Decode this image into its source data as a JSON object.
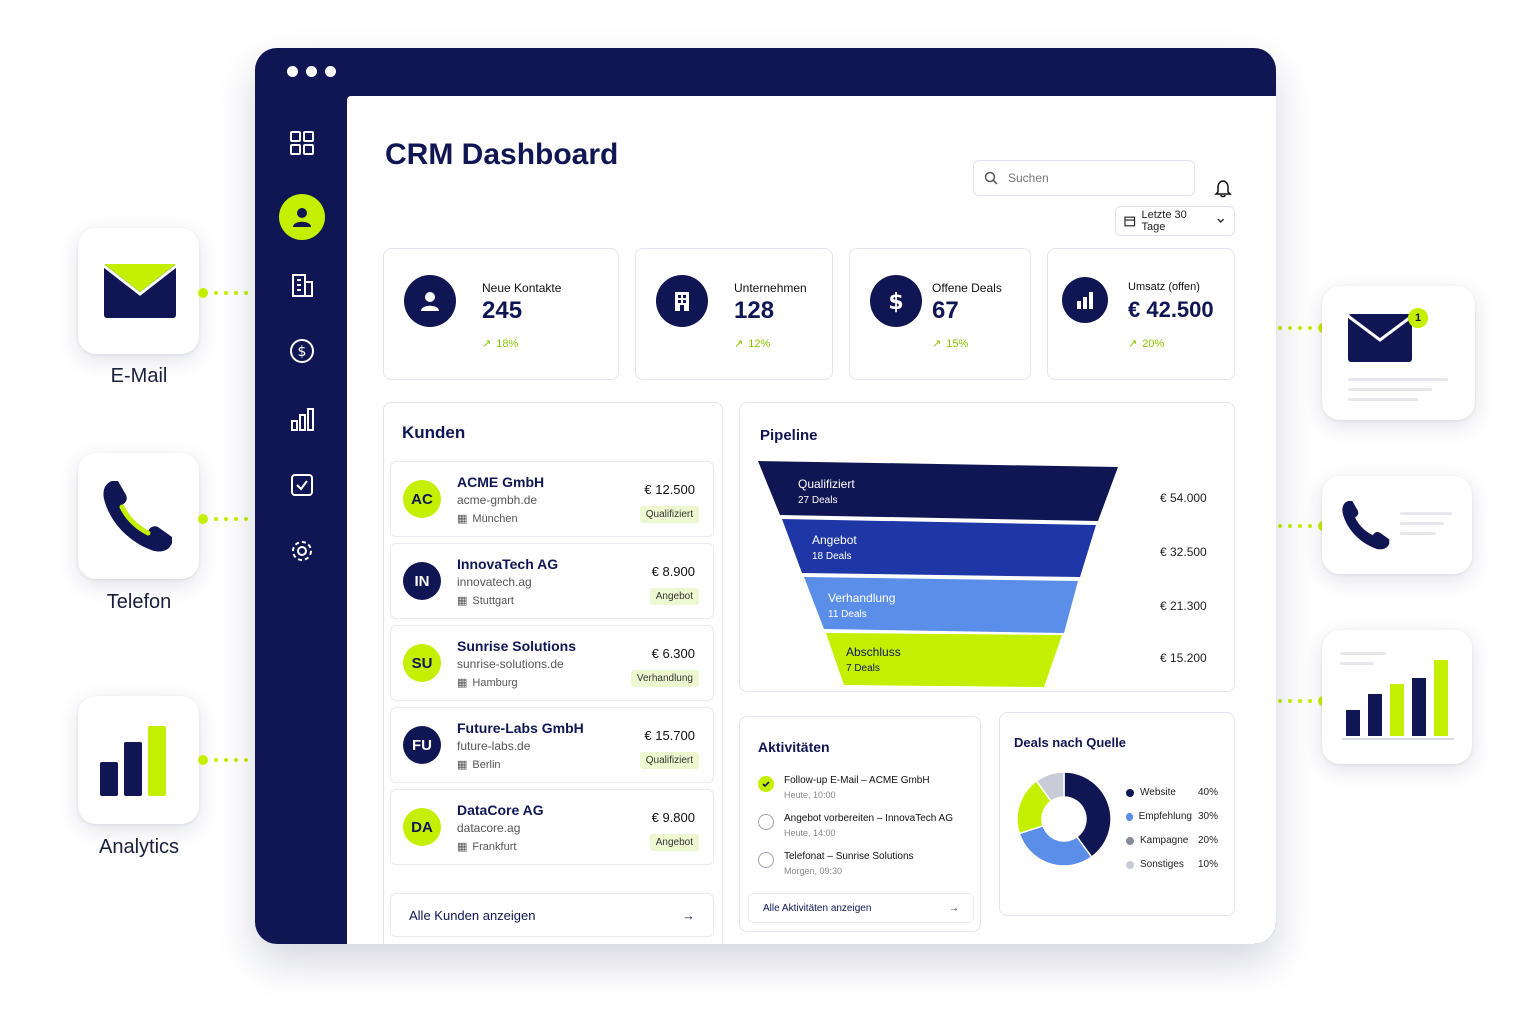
{
  "side_widgets": {
    "email_label": "E-Mail",
    "phone_label": "Telefon",
    "analytics_label": "Analytics",
    "notification_count": "1"
  },
  "header": {
    "title": "CRM Dashboard",
    "search_placeholder": "Suchen",
    "date_range": "Letzte 30 Tage"
  },
  "kpis": [
    {
      "label": "Neue Kontakte",
      "value": "245",
      "trend": "18%"
    },
    {
      "label": "Unternehmen",
      "value": "128",
      "trend": "12%"
    },
    {
      "label": "Offene Deals",
      "value": "67",
      "trend": "15%"
    },
    {
      "label": "Umsatz (offen)",
      "value": "€ 42.500",
      "trend": "20%"
    }
  ],
  "customers": {
    "title": "Kunden",
    "items": [
      {
        "initials": "AC",
        "name": "ACME GmbH",
        "domain": "acme-gmbh.de",
        "city": "München",
        "amount": "€ 12.500",
        "stage": "Qualifiziert"
      },
      {
        "initials": "IN",
        "name": "InnovaTech AG",
        "domain": "innovatech.ag",
        "city": "Stuttgart",
        "amount": "€ 8.900",
        "stage": "Angebot"
      },
      {
        "initials": "SU",
        "name": "Sunrise Solutions",
        "domain": "sunrise-solutions.de",
        "city": "Hamburg",
        "amount": "€ 6.300",
        "stage": "Verhandlung"
      },
      {
        "initials": "FU",
        "name": "Future-Labs GmbH",
        "domain": "future-labs.de",
        "city": "Berlin",
        "amount": "€ 15.700",
        "stage": "Qualifiziert"
      },
      {
        "initials": "DA",
        "name": "DataCore AG",
        "domain": "datacore.ag",
        "city": "Frankfurt",
        "amount": "€ 9.800",
        "stage": "Angebot"
      }
    ],
    "all_link": "Alle Kunden anzeigen"
  },
  "pipeline": {
    "title": "Pipeline",
    "stages": [
      {
        "name": "Qualifiziert",
        "deals": "27 Deals",
        "amount": "€ 54.000",
        "color": "#0f1653"
      },
      {
        "name": "Angebot",
        "deals": "18 Deals",
        "amount": "€ 32.500",
        "color": "#1e36a6"
      },
      {
        "name": "Verhandlung",
        "deals": "11 Deals",
        "amount": "€ 21.300",
        "color": "#5b8ee8"
      },
      {
        "name": "Abschluss",
        "deals": "7 Deals",
        "amount": "€ 15.200",
        "color": "#c4f000"
      }
    ]
  },
  "activities": {
    "title": "Aktivitäten",
    "items": [
      {
        "title": "Follow-up E-Mail – ACME GmbH",
        "time": "Heute, 10:00",
        "done": true
      },
      {
        "title": "Angebot vorbereiten – InnovaTech AG",
        "time": "Heute, 14:00",
        "done": false
      },
      {
        "title": "Telefonat – Sunrise Solutions",
        "time": "Morgen, 09:30",
        "done": false
      }
    ],
    "all_link": "Alle Aktivitäten anzeigen"
  },
  "chart_data": {
    "type": "pie",
    "title": "Deals nach Quelle",
    "categories": [
      "Website",
      "Empfehlung",
      "Kampagne",
      "Sonstiges"
    ],
    "values": [
      40,
      30,
      20,
      10
    ],
    "percent_labels": [
      "40%",
      "30%",
      "20%",
      "10%"
    ],
    "colors": [
      "#0f1653",
      "#5b8ee8",
      "#c4f000",
      "#c9ccd6"
    ],
    "legend": "right"
  },
  "colors": {
    "navy": "#0f1653",
    "lime": "#c4f000",
    "blue": "#1e36a6",
    "light_blue": "#5b8ee8"
  }
}
